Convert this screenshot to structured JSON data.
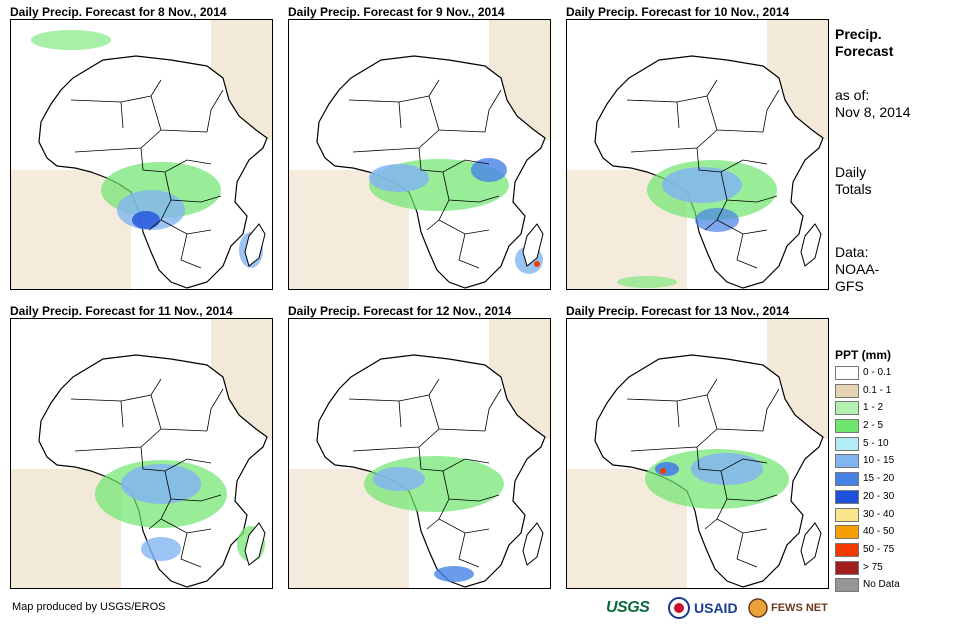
{
  "panels": [
    {
      "title": "Daily Precip. Forecast for 8 Nov., 2014"
    },
    {
      "title": "Daily Precip. Forecast for 9 Nov., 2014"
    },
    {
      "title": "Daily Precip. Forecast for 10 Nov., 2014"
    },
    {
      "title": "Daily Precip. Forecast for 11 Nov., 2014"
    },
    {
      "title": "Daily Precip. Forecast for 12 Nov., 2014"
    },
    {
      "title": "Daily Precip. Forecast for 13 Nov., 2014"
    }
  ],
  "side": {
    "title_line1": "Precip.",
    "title_line2": "Forecast",
    "asof_line1": "as of:",
    "asof_line2": "Nov 8, 2014",
    "daily_line1": "Daily",
    "daily_line2": "Totals",
    "data_line1": "Data:",
    "data_line2": "NOAA-",
    "data_line3": "GFS"
  },
  "legend": {
    "title": "PPT (mm)",
    "items": [
      {
        "label": "0 - 0.1",
        "color": "#ffffff"
      },
      {
        "label": "0.1 - 1",
        "color": "#e6d3b3"
      },
      {
        "label": "1 - 2",
        "color": "#b4f0b4"
      },
      {
        "label": "2 - 5",
        "color": "#6ee66e"
      },
      {
        "label": "5 - 10",
        "color": "#b4ecf5"
      },
      {
        "label": "10 - 15",
        "color": "#82b4f0"
      },
      {
        "label": "15 - 20",
        "color": "#4682e6"
      },
      {
        "label": "20 - 30",
        "color": "#1e50dc"
      },
      {
        "label": "30 - 40",
        "color": "#fae68c"
      },
      {
        "label": "40 - 50",
        "color": "#f5a000"
      },
      {
        "label": "50 - 75",
        "color": "#f03c00"
      },
      {
        "label": "> 75",
        "color": "#a01e1e"
      },
      {
        "label": "No Data",
        "color": "#969696"
      }
    ]
  },
  "credit": "Map produced by USGS/EROS",
  "logos": {
    "usgs": "USGS",
    "usaid": "USAID",
    "fews": "FEWS NET"
  }
}
